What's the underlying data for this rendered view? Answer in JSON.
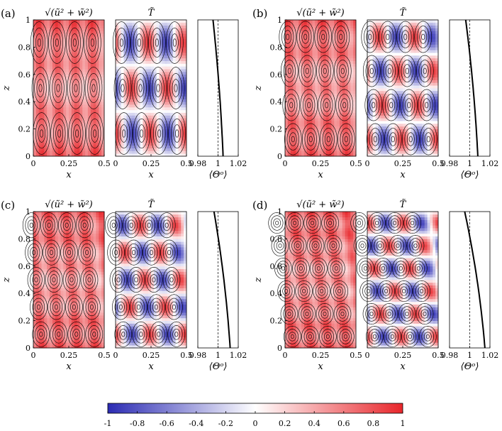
{
  "figure": {
    "panels": [
      {
        "label": "(a)",
        "cells_x": 4,
        "cells_z": 3,
        "tilt": 0.05,
        "profile_bottom": 1.005,
        "profile_top": 0.995,
        "flux": "⟨Θᵒ⟩"
      },
      {
        "label": "(b)",
        "cells_x": 4,
        "cells_z": 4,
        "tilt": 0.1,
        "profile_bottom": 1.008,
        "profile_top": 0.996,
        "flux": "⟨Θᵒ⟩"
      },
      {
        "label": "(c)",
        "cells_x": 4,
        "cells_z": 5,
        "tilt": 0.17,
        "profile_bottom": 1.012,
        "profile_top": 0.996,
        "flux": "⟨Θᵒ⟩"
      },
      {
        "label": "(d)",
        "cells_x": 4,
        "cells_z": 6,
        "tilt": 0.26,
        "profile_bottom": 1.015,
        "profile_top": 0.995,
        "flux": "⟨Θᵒ⟩"
      }
    ],
    "titles": {
      "speed": "√(ũ² + w̃²)",
      "temperature": "T̃"
    },
    "axes": {
      "x_label": "x",
      "z_label": "z",
      "x_ticks": [
        "0",
        "0.25",
        "0.5"
      ],
      "z_ticks": [
        "0",
        "0.2",
        "0.4",
        "0.6",
        "0.8",
        "1"
      ],
      "profile_ticks": [
        "0.98",
        "1",
        "1.02"
      ]
    },
    "colorbar": {
      "ticks": [
        "-1",
        "-0.8",
        "-0.6",
        "-0.4",
        "-0.2",
        "0",
        "0.2",
        "0.4",
        "0.6",
        "0.8",
        "1"
      ],
      "colors": {
        "min": "#2b2bb3",
        "mid": "#ffffff",
        "max": "#e8262b"
      }
    }
  },
  "chart_data": {
    "type": "heatmap",
    "title": "",
    "xlabel": "x",
    "ylabel": "z",
    "xlim": [
      0,
      0.5
    ],
    "ylim": [
      0,
      1
    ],
    "profile_xlim": [
      0.98,
      1.02
    ],
    "profile_xlabel": "⟨Θᵒ⟩",
    "colorbar_range": [
      -1,
      1
    ]
  }
}
